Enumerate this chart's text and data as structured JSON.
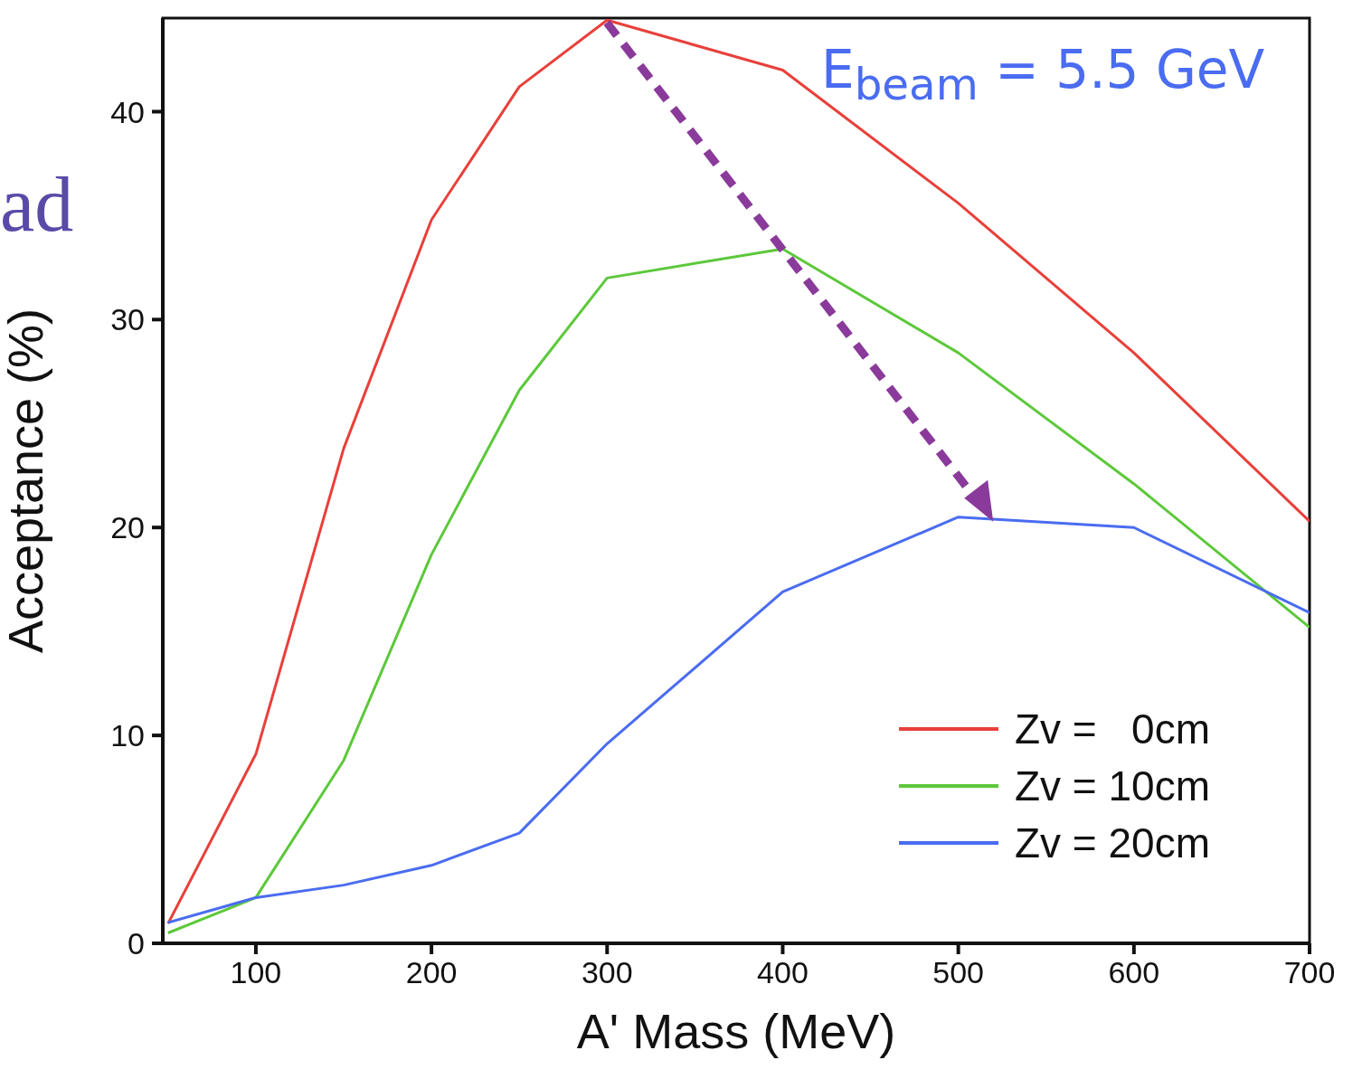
{
  "chart_data": {
    "type": "line",
    "xlabel": "A' Mass (MeV)",
    "ylabel": "Acceptance (%)",
    "x": [
      50,
      100,
      150,
      200,
      250,
      300,
      400,
      500,
      600,
      700
    ],
    "series": [
      {
        "name": "Zv =   0cm",
        "color": "#e8403a",
        "values": [
          0.95,
          9.1,
          23.8,
          34.8,
          41.2,
          44.4,
          42.0,
          35.6,
          28.4,
          20.3
        ]
      },
      {
        "name": "Zv = 10cm",
        "color": "#5cc83a",
        "values": [
          0.5,
          2.2,
          8.8,
          18.7,
          26.6,
          32.0,
          33.4,
          28.4,
          22.1,
          15.2
        ]
      },
      {
        "name": "Zv = 20cm",
        "color": "#4a6cf0",
        "values": [
          1.0,
          2.2,
          2.8,
          3.75,
          5.3,
          9.6,
          16.9,
          20.5,
          20.0,
          15.9
        ]
      }
    ],
    "xlim": [
      47,
      700
    ],
    "xticks": [
      100,
      200,
      300,
      400,
      500,
      600,
      700
    ],
    "ylim": [
      0,
      44.5
    ],
    "yticks": [
      0,
      10,
      20,
      30,
      40
    ],
    "grid": false,
    "legend": "bottom right",
    "marker": "none",
    "line_style": "solid",
    "annotations": [
      "E$_{beam}$ = 5.5 GeV",
      "ad"
    ]
  }
}
